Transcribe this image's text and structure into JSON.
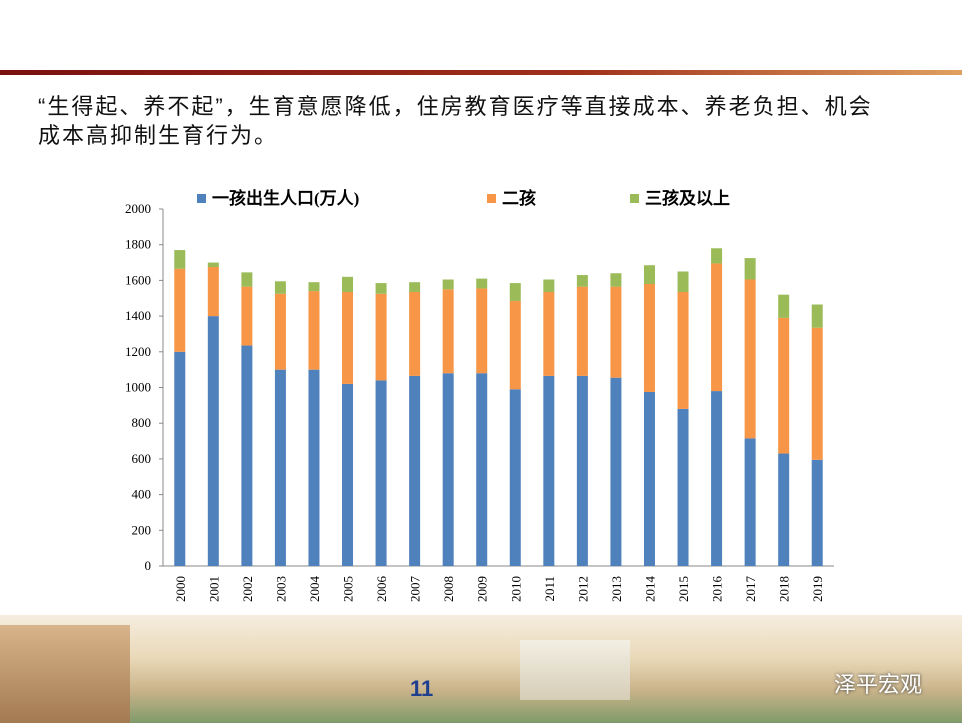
{
  "headline": "“生得起、养不起”，生育意愿降低，住房教育医疗等直接成本、养老负担、机会成本高抑制生育行为。",
  "page_number": "11",
  "watermark": "泽平宏观",
  "chart_data": {
    "type": "stacked-bar",
    "categories": [
      "2000",
      "2001",
      "2002",
      "2003",
      "2004",
      "2005",
      "2006",
      "2007",
      "2008",
      "2009",
      "2010",
      "2011",
      "2012",
      "2013",
      "2014",
      "2015",
      "2016",
      "2017",
      "2018",
      "2019"
    ],
    "series": [
      {
        "name": "一孩出生人口(万人)",
        "color": "#4f81bd",
        "values": [
          1200,
          1400,
          1235,
          1100,
          1100,
          1020,
          1040,
          1065,
          1080,
          1080,
          990,
          1065,
          1065,
          1055,
          975,
          880,
          980,
          715,
          630,
          595
        ]
      },
      {
        "name": "二孩",
        "color": "#f79646",
        "values": [
          465,
          275,
          330,
          425,
          440,
          515,
          485,
          470,
          470,
          475,
          495,
          470,
          500,
          510,
          605,
          655,
          715,
          890,
          760,
          740
        ]
      },
      {
        "name": "三孩及以上",
        "color": "#9bbb59",
        "values": [
          105,
          25,
          80,
          70,
          50,
          85,
          60,
          55,
          55,
          55,
          100,
          70,
          65,
          75,
          105,
          115,
          85,
          120,
          130,
          130
        ]
      }
    ],
    "ylim": [
      0,
      2000
    ],
    "yticks": [
      0,
      200,
      400,
      600,
      800,
      1000,
      1200,
      1400,
      1600,
      1800,
      2000
    ],
    "grid": false,
    "legend": "top"
  }
}
